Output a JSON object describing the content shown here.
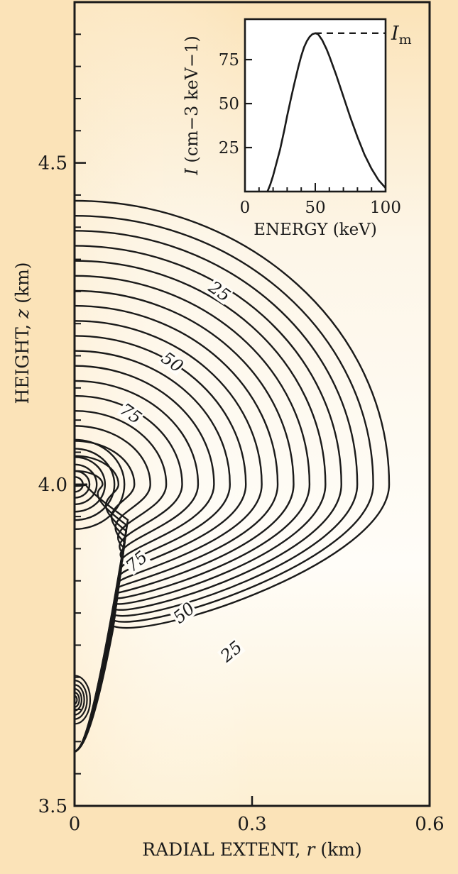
{
  "chart_data": [
    {
      "type": "contour",
      "xlabel": "RADIAL EXTENT, r (km)",
      "ylabel": "HEIGHT, z (km)",
      "xlim": [
        0,
        0.6
      ],
      "ylim": [
        3.5,
        4.75
      ],
      "xticks": [
        0,
        0.3,
        0.6
      ],
      "xtick_labels": [
        "0",
        "0.3",
        "0.6"
      ],
      "yticks": [
        3.5,
        4.0,
        4.5
      ],
      "ytick_labels": [
        "3.5",
        "4.0",
        "4.5"
      ],
      "contour_labels": [
        {
          "text": "25",
          "r": 0.245,
          "z": 4.3,
          "angle": 35
        },
        {
          "text": "50",
          "r": 0.165,
          "z": 4.19,
          "angle": 35
        },
        {
          "text": "75",
          "r": 0.095,
          "z": 4.11,
          "angle": 35
        },
        {
          "text": "75",
          "r": 0.105,
          "z": 3.88,
          "angle": -40
        },
        {
          "text": "50",
          "r": 0.185,
          "z": 3.8,
          "angle": -40
        },
        {
          "text": "25",
          "r": 0.265,
          "z": 3.74,
          "angle": -40
        }
      ]
    },
    {
      "type": "line",
      "title": "",
      "xlabel": "ENERGY (keV)",
      "ylabel": "I (cm−3 keV−1)",
      "xlim": [
        0,
        100
      ],
      "ylim": [
        0,
        98
      ],
      "xticks": [
        0,
        50,
        100
      ],
      "xtick_labels": [
        "0",
        "50",
        "100"
      ],
      "yticks": [
        25,
        50,
        75
      ],
      "ytick_labels": [
        "25",
        "50",
        "75"
      ],
      "series": [
        {
          "x": [
            16,
            18,
            20,
            22,
            25,
            28,
            30,
            33,
            35,
            38,
            40,
            42,
            44,
            46,
            48,
            50,
            52,
            55,
            58,
            60,
            65,
            70,
            75,
            80,
            85,
            90,
            95,
            100
          ],
          "values": [
            0,
            4,
            9,
            15,
            24,
            35,
            43,
            54,
            61,
            71,
            77,
            82,
            85.5,
            88,
            89.5,
            90,
            89.5,
            86,
            81,
            77,
            66,
            54,
            42,
            31,
            21,
            13,
            6.5,
            2
          ]
        }
      ],
      "reference_line": {
        "value": 90,
        "label": "I",
        "label_subscript": "m"
      }
    }
  ]
}
